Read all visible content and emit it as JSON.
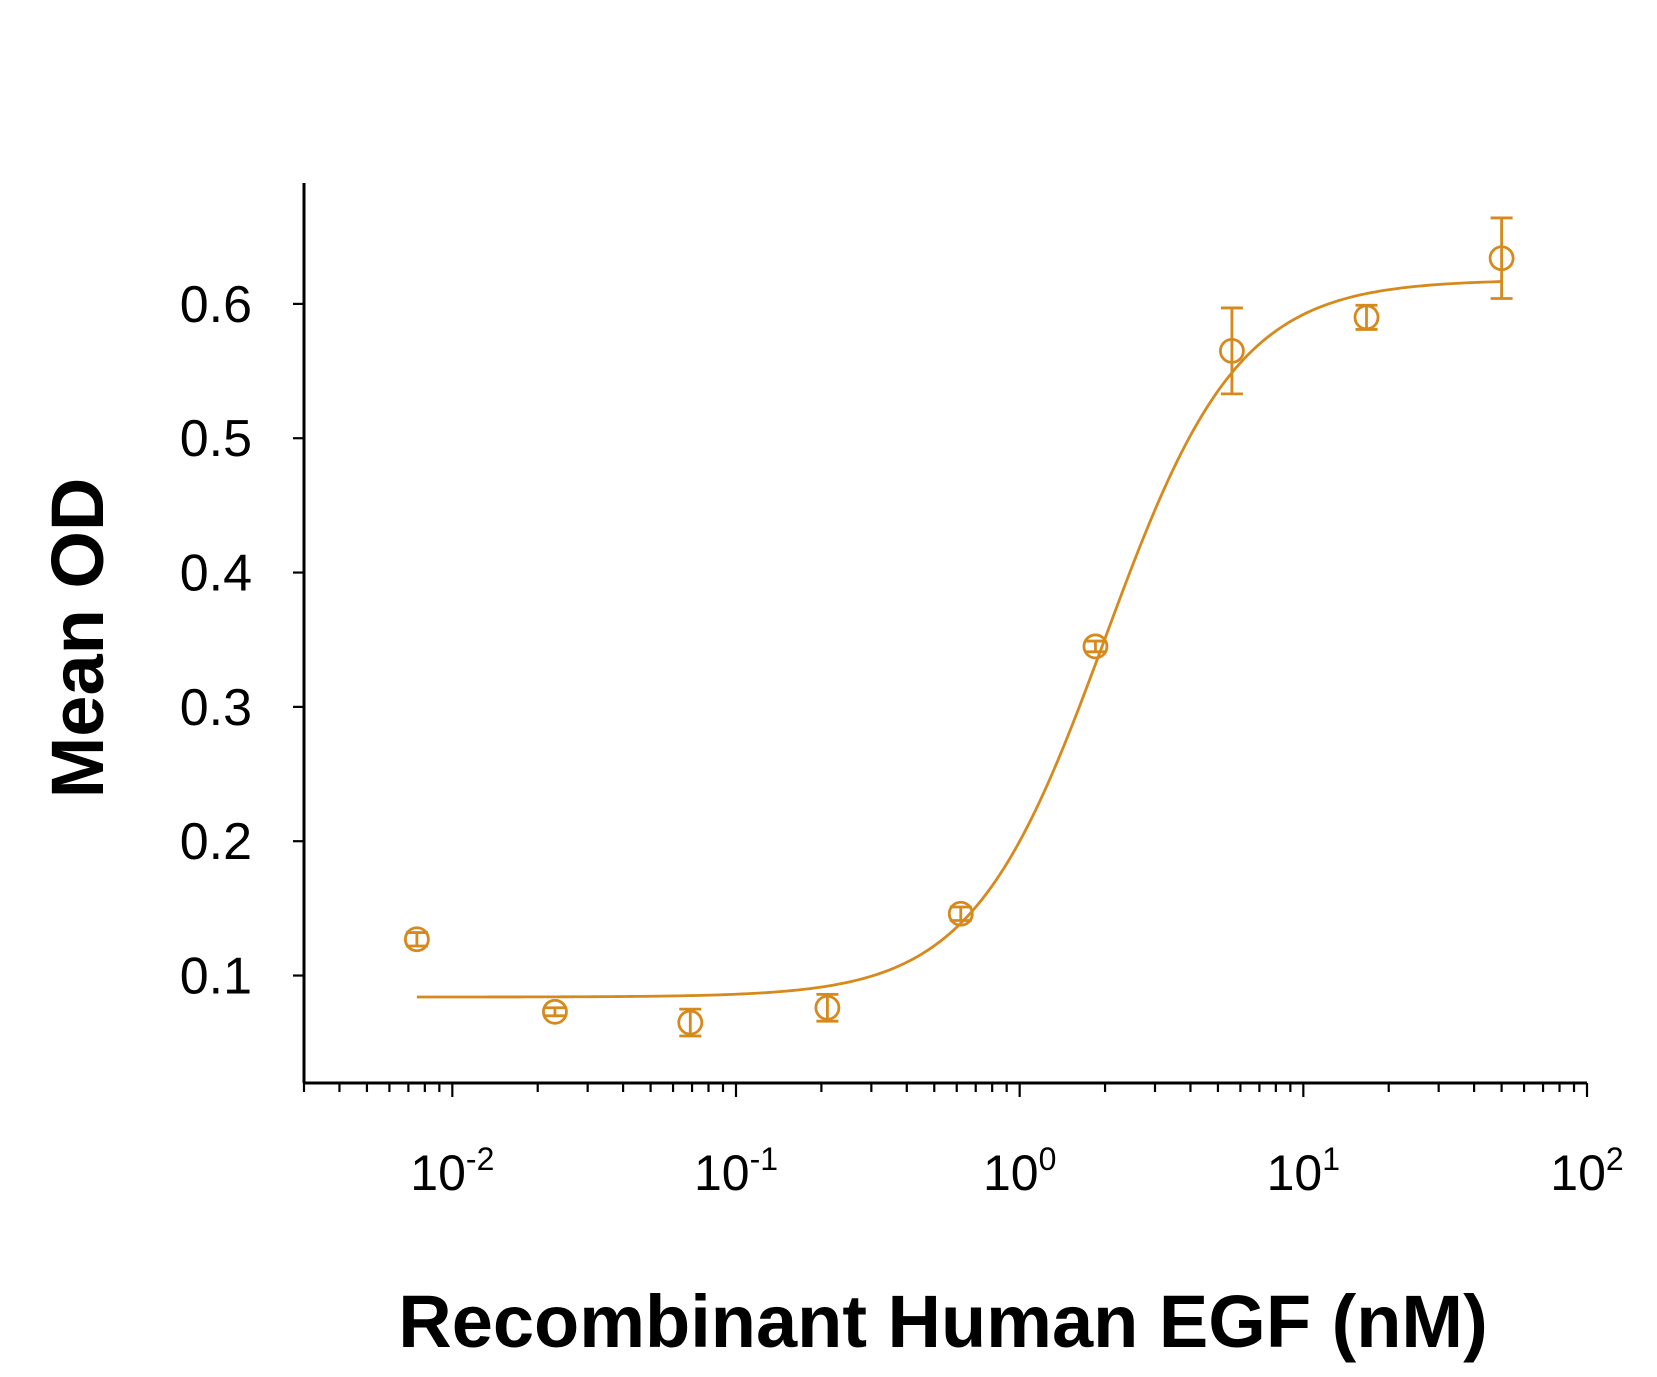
{
  "chart_data": {
    "type": "scatter",
    "color": "#D6891C",
    "x_scale": "log",
    "xlabel": "Recombinant Human EGF (nM)",
    "ylabel": "Mean OD",
    "xlim": [
      0.003,
      100
    ],
    "ylim": [
      0.02,
      0.69
    ],
    "yticks": [
      0.1,
      0.2,
      0.3,
      0.4,
      0.5,
      0.6
    ],
    "ytick_labels": [
      "0.1",
      "0.2",
      "0.3",
      "0.4",
      "0.5",
      "0.6"
    ],
    "xticks": [
      {
        "value": 0.01,
        "base": "10",
        "exp": "-2"
      },
      {
        "value": 0.1,
        "base": "10",
        "exp": "-1"
      },
      {
        "value": 1,
        "base": "10",
        "exp": "0"
      },
      {
        "value": 10,
        "base": "10",
        "exp": "1"
      },
      {
        "value": 100,
        "base": "10",
        "exp": "2"
      }
    ],
    "points": [
      {
        "x": 0.0075,
        "y": 0.127,
        "err": 0.005
      },
      {
        "x": 0.023,
        "y": 0.073,
        "err": 0.003
      },
      {
        "x": 0.069,
        "y": 0.065,
        "err": 0.01
      },
      {
        "x": 0.21,
        "y": 0.076,
        "err": 0.01
      },
      {
        "x": 0.62,
        "y": 0.146,
        "err": 0.005
      },
      {
        "x": 1.85,
        "y": 0.345,
        "err": 0.004
      },
      {
        "x": 5.6,
        "y": 0.565,
        "err": 0.032
      },
      {
        "x": 16.7,
        "y": 0.59,
        "err": 0.009
      },
      {
        "x": 50,
        "y": 0.634,
        "err": 0.03
      }
    ],
    "fit": {
      "model": "4PL",
      "bottom": 0.084,
      "top": 0.618,
      "ec50": 2.0,
      "hill": 1.85,
      "x_range": [
        0.0075,
        50
      ]
    }
  }
}
